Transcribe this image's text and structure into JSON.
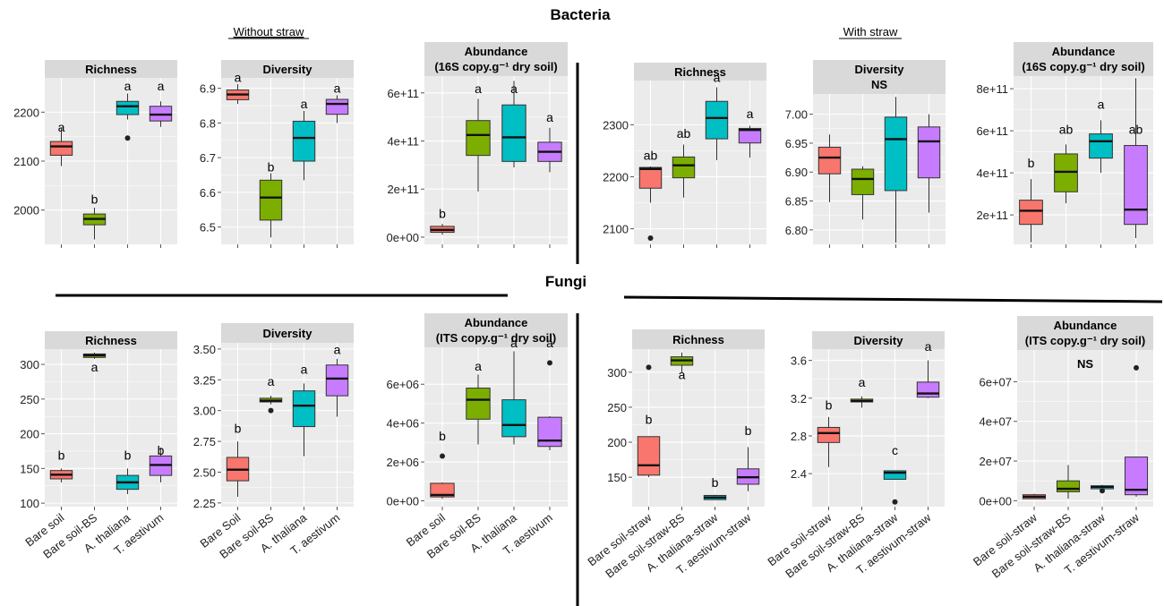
{
  "figure": {
    "title_bacteria": "Bacteria",
    "title_fungi": "Fungi",
    "label_without_straw": "Without straw",
    "label_with_straw": "With straw"
  },
  "colors": {
    "panel_bg": "#ebebeb",
    "strip_bg": "#d9d9d9",
    "grid": "#ffffff",
    "groups": [
      "#f8766d",
      "#7cae00",
      "#00bfc4",
      "#c77cff"
    ]
  },
  "chart_data": [
    {
      "type": "box",
      "id": "b1",
      "title": "Richness",
      "categories": [
        "Bare soil",
        "Bare soil-BS",
        "A. thaliana",
        "T. aestivum"
      ],
      "show_xlabels": false,
      "yticks": [
        2000,
        2100,
        2200
      ],
      "ytick_labels": [
        "2000",
        "2100",
        "2200"
      ],
      "ylim": [
        1930,
        2270
      ],
      "boxes": [
        {
          "min": 2090,
          "q1": 2112,
          "median": 2130,
          "q3": 2140,
          "max": 2168,
          "outliers": []
        },
        {
          "min": 1940,
          "q1": 1970,
          "median": 1982,
          "q3": 1992,
          "max": 2005,
          "outliers": []
        },
        {
          "min": 2185,
          "q1": 2195,
          "median": 2212,
          "q3": 2222,
          "max": 2238,
          "outliers": [
            2147
          ]
        },
        {
          "min": 2170,
          "q1": 2182,
          "median": 2195,
          "q3": 2212,
          "max": 2222,
          "outliers": []
        }
      ],
      "letters": [
        "a",
        "b",
        "a",
        "a"
      ],
      "letter_y": [
        2160,
        2013,
        2244,
        2244
      ]
    },
    {
      "type": "box",
      "id": "b2",
      "title": "Diversity",
      "categories": [
        "Bare soil",
        "Bare soil-BS",
        "A. thaliana",
        "T. aestivum"
      ],
      "show_xlabels": false,
      "yticks": [
        6.5,
        6.6,
        6.7,
        6.8,
        6.9
      ],
      "ytick_labels": [
        "6.5",
        "6.6",
        "6.7",
        "6.8",
        "6.9"
      ],
      "ylim": [
        6.45,
        6.93
      ],
      "boxes": [
        {
          "min": 6.855,
          "q1": 6.867,
          "median": 6.882,
          "q3": 6.895,
          "max": 6.912,
          "outliers": []
        },
        {
          "min": 6.47,
          "q1": 6.52,
          "median": 6.585,
          "q3": 6.635,
          "max": 6.655,
          "outliers": []
        },
        {
          "min": 6.635,
          "q1": 6.69,
          "median": 6.757,
          "q3": 6.805,
          "max": 6.835,
          "outliers": []
        },
        {
          "min": 6.8,
          "q1": 6.825,
          "median": 6.855,
          "q3": 6.868,
          "max": 6.88,
          "outliers": []
        }
      ],
      "letters": [
        "a",
        "b",
        "a",
        "a"
      ],
      "letter_y": [
        6.918,
        6.66,
        6.842,
        6.888
      ]
    },
    {
      "type": "box",
      "id": "b3",
      "title": "Abundance\n(16S copy.g⁻¹ dry soil)",
      "categories": [
        "Bare soil",
        "Bare soil-BS",
        "A. thaliana",
        "T. aestivum"
      ],
      "show_xlabels": false,
      "yticks": [
        0,
        200000000000.0,
        400000000000.0,
        600000000000.0
      ],
      "ytick_labels": [
        "0e+00",
        "2e+11",
        "4e+11",
        "6e+11"
      ],
      "ylim": [
        -30000000000.0,
        670000000000.0
      ],
      "boxes": [
        {
          "min": 10000000000.0,
          "q1": 20000000000.0,
          "median": 30000000000.0,
          "q3": 45000000000.0,
          "max": 55000000000.0,
          "outliers": []
        },
        {
          "min": 190000000000.0,
          "q1": 340000000000.0,
          "median": 425000000000.0,
          "q3": 485000000000.0,
          "max": 575000000000.0,
          "outliers": []
        },
        {
          "min": 290000000000.0,
          "q1": 315000000000.0,
          "median": 415000000000.0,
          "q3": 550000000000.0,
          "max": 650000000000.0,
          "outliers": []
        },
        {
          "min": 270000000000.0,
          "q1": 315000000000.0,
          "median": 355000000000.0,
          "q3": 395000000000.0,
          "max": 455000000000.0,
          "outliers": []
        }
      ],
      "letters": [
        "b",
        "a",
        "a",
        "a"
      ],
      "letter_y": [
        80000000000.0,
        600000000000.0,
        600000000000.0,
        480000000000.0
      ]
    },
    {
      "type": "box",
      "id": "b4",
      "title": "Richness",
      "categories": [
        "Bare soil-straw",
        "Bare soil-straw-BS",
        "A. thaliana-straw",
        "T. aestivum-straw"
      ],
      "show_xlabels": false,
      "yticks": [
        2100,
        2200,
        2300
      ],
      "ytick_labels": [
        "2100",
        "2200",
        "2300"
      ],
      "ylim": [
        2070,
        2385
      ],
      "boxes": [
        {
          "min": 2150,
          "q1": 2178,
          "median": 2215,
          "q3": 2218,
          "max": 2220,
          "outliers": [
            2082
          ]
        },
        {
          "min": 2160,
          "q1": 2198,
          "median": 2222,
          "q3": 2238,
          "max": 2262,
          "outliers": []
        },
        {
          "min": 2232,
          "q1": 2273,
          "median": 2313,
          "q3": 2345,
          "max": 2372,
          "outliers": []
        },
        {
          "min": 2237,
          "q1": 2265,
          "median": 2290,
          "q3": 2293,
          "max": 2298,
          "outliers": []
        }
      ],
      "letters": [
        "ab",
        "ab",
        "a",
        "a"
      ],
      "letter_y": [
        2233,
        2275,
        2382,
        2313
      ]
    },
    {
      "type": "box",
      "id": "b5",
      "title": "Diversity\nNS",
      "categories": [
        "Bare soil-straw",
        "Bare soil-straw-BS",
        "A. thaliana-straw",
        "T. aestivum-straw"
      ],
      "show_xlabels": false,
      "yticks": [
        6.8,
        6.85,
        6.9,
        6.95,
        7.0
      ],
      "ytick_labels": [
        "6.80",
        "6.85",
        "6.90",
        "6.95",
        "7.00"
      ],
      "ylim": [
        6.775,
        7.035
      ],
      "boxes": [
        {
          "min": 6.848,
          "q1": 6.897,
          "median": 6.925,
          "q3": 6.943,
          "max": 6.965,
          "outliers": []
        },
        {
          "min": 6.818,
          "q1": 6.861,
          "median": 6.888,
          "q3": 6.905,
          "max": 6.91,
          "outliers": []
        },
        {
          "min": 6.778,
          "q1": 6.868,
          "median": 6.957,
          "q3": 6.995,
          "max": 7.03,
          "outliers": []
        },
        {
          "min": 6.83,
          "q1": 6.89,
          "median": 6.953,
          "q3": 6.978,
          "max": 7.0,
          "outliers": []
        }
      ],
      "letters": [],
      "letter_y": []
    },
    {
      "type": "box",
      "id": "b6",
      "title": "Abundance\n(16S copy.g⁻¹ dry soil)",
      "categories": [
        "Bare soil-straw",
        "Bare soil-straw-BS",
        "A. thaliana-straw",
        "T. aestivum-straw"
      ],
      "show_xlabels": false,
      "yticks": [
        200000000000.0,
        400000000000.0,
        600000000000.0,
        800000000000.0
      ],
      "ytick_labels": [
        "2e+11",
        "4e+11",
        "6e+11",
        "8e+11"
      ],
      "ylim": [
        60000000000.0,
        860000000000.0
      ],
      "boxes": [
        {
          "min": 70000000000.0,
          "q1": 155000000000.0,
          "median": 220000000000.0,
          "q3": 270000000000.0,
          "max": 370000000000.0,
          "outliers": []
        },
        {
          "min": 255000000000.0,
          "q1": 310000000000.0,
          "median": 405000000000.0,
          "q3": 490000000000.0,
          "max": 535000000000.0,
          "outliers": []
        },
        {
          "min": 400000000000.0,
          "q1": 470000000000.0,
          "median": 550000000000.0,
          "q3": 585000000000.0,
          "max": 650000000000.0,
          "outliers": []
        },
        {
          "min": 90000000000.0,
          "q1": 155000000000.0,
          "median": 225000000000.0,
          "q3": 530000000000.0,
          "max": 850000000000.0,
          "outliers": []
        }
      ],
      "letters": [
        "b",
        "ab",
        "a",
        "ab"
      ],
      "letter_y": [
        425000000000.0,
        585000000000.0,
        705000000000.0,
        585000000000.0
      ]
    },
    {
      "type": "box",
      "id": "f1",
      "title": "Richness",
      "categories": [
        "Bare soil",
        "Bare soil-BS",
        "A. thaliana",
        "T. aestivum"
      ],
      "show_xlabels": true,
      "yticks": [
        100,
        150,
        200,
        250,
        300
      ],
      "ytick_labels": [
        "100",
        "150",
        "200",
        "250",
        "300"
      ],
      "ylim": [
        95,
        322
      ],
      "boxes": [
        {
          "min": 130,
          "q1": 135,
          "median": 141,
          "q3": 147,
          "max": 150,
          "outliers": []
        },
        {
          "min": 308,
          "q1": 310,
          "median": 313,
          "q3": 315,
          "max": 317,
          "outliers": []
        },
        {
          "min": 113,
          "q1": 120,
          "median": 130,
          "q3": 140,
          "max": 150,
          "outliers": []
        },
        {
          "min": 130,
          "q1": 140,
          "median": 155,
          "q3": 168,
          "max": 180,
          "outliers": []
        }
      ],
      "letters": [
        "b",
        "a",
        "b",
        "b"
      ],
      "letter_y": [
        163,
        290,
        163,
        170
      ]
    },
    {
      "type": "box",
      "id": "f2",
      "title": "Diversity",
      "categories": [
        "Bare Soil",
        "Bare soil-BS",
        "A. thaliana",
        "T. aestivum"
      ],
      "show_xlabels": true,
      "yticks": [
        2.25,
        2.5,
        2.75,
        3.0,
        3.25,
        3.5
      ],
      "ytick_labels": [
        "2.25",
        "2.50",
        "2.75",
        "3.00",
        "3.25",
        "3.50"
      ],
      "ylim": [
        2.22,
        3.55
      ],
      "boxes": [
        {
          "min": 2.3,
          "q1": 2.43,
          "median": 2.52,
          "q3": 2.62,
          "max": 2.75,
          "outliers": []
        },
        {
          "min": 3.05,
          "q1": 3.07,
          "median": 3.08,
          "q3": 3.1,
          "max": 3.12,
          "outliers": [
            3.0
          ]
        },
        {
          "min": 2.63,
          "q1": 2.87,
          "median": 3.04,
          "q3": 3.16,
          "max": 3.22,
          "outliers": []
        },
        {
          "min": 2.95,
          "q1": 3.12,
          "median": 3.26,
          "q3": 3.37,
          "max": 3.42,
          "outliers": []
        }
      ],
      "letters": [
        "b",
        "a",
        "a",
        "a"
      ],
      "letter_y": [
        2.82,
        3.2,
        3.3,
        3.46
      ]
    },
    {
      "type": "box",
      "id": "f3",
      "title": "Abundance\n(ITS copy.g⁻¹ dry soil)",
      "categories": [
        "Bare soil",
        "Bare soil-BS",
        "A. thaliana",
        "T. aestivum"
      ],
      "show_xlabels": true,
      "yticks": [
        0,
        2000000.0,
        4000000.0,
        6000000.0
      ],
      "ytick_labels": [
        "0e+00",
        "2e+06",
        "4e+06",
        "6e+06"
      ],
      "ylim": [
        -300000.0,
        7900000.0
      ],
      "boxes": [
        {
          "min": 100000.0,
          "q1": 200000.0,
          "median": 300000.0,
          "q3": 900000.0,
          "max": 950000.0,
          "outliers": [
            2300000.0
          ]
        },
        {
          "min": 2900000.0,
          "q1": 4200000.0,
          "median": 5200000.0,
          "q3": 5800000.0,
          "max": 6500000.0,
          "outliers": []
        },
        {
          "min": 2900000.0,
          "q1": 3300000.0,
          "median": 3900000.0,
          "q3": 5200000.0,
          "max": 7700000.0,
          "outliers": []
        },
        {
          "min": 2600000.0,
          "q1": 2800000.0,
          "median": 3100000.0,
          "q3": 4300000.0,
          "max": 4350000.0,
          "outliers": [
            7100000.0
          ]
        }
      ],
      "letters": [
        "b",
        "a",
        "a",
        "a"
      ],
      "letter_y": [
        3100000.0,
        6700000.0,
        7900000.0,
        7900000.0
      ]
    },
    {
      "type": "box",
      "id": "f4",
      "title": "Richness",
      "categories": [
        "Bare soil-straw",
        "Bare soil-straw-BS",
        "A. thaliana-straw",
        "T. aestivum-straw"
      ],
      "show_xlabels": true,
      "yticks": [
        150,
        200,
        250,
        300
      ],
      "ytick_labels": [
        "150",
        "200",
        "250",
        "300"
      ],
      "ylim": [
        108,
        333
      ],
      "boxes": [
        {
          "min": 150,
          "q1": 153,
          "median": 167,
          "q3": 208,
          "max": 208,
          "outliers": [
            307
          ]
        },
        {
          "min": 300,
          "q1": 310,
          "median": 317,
          "q3": 322,
          "max": 328,
          "outliers": []
        },
        {
          "min": 118,
          "q1": 118,
          "median": 121,
          "q3": 124,
          "max": 125,
          "outliers": []
        },
        {
          "min": 130,
          "q1": 140,
          "median": 150,
          "q3": 162,
          "max": 193,
          "outliers": []
        }
      ],
      "letters": [
        "b",
        "a",
        "b",
        "b"
      ],
      "letter_y": [
        226,
        290,
        136,
        210
      ]
    },
    {
      "type": "box",
      "id": "f5",
      "title": "Diversity",
      "categories": [
        "Bare soil-straw",
        "Bare soil-straw-BS",
        "A. thaliana-straw",
        "T. aestivum-straw"
      ],
      "show_xlabels": true,
      "yticks": [
        2.4,
        2.8,
        3.2,
        3.6
      ],
      "ytick_labels": [
        "2.4",
        "2.8",
        "3.2",
        "3.6"
      ],
      "ylim": [
        2.05,
        3.72
      ],
      "boxes": [
        {
          "min": 2.47,
          "q1": 2.73,
          "median": 2.83,
          "q3": 2.89,
          "max": 3.0,
          "outliers": []
        },
        {
          "min": 3.1,
          "q1": 3.16,
          "median": 3.17,
          "q3": 3.19,
          "max": 3.22,
          "outliers": []
        },
        {
          "min": 2.34,
          "q1": 2.34,
          "median": 2.41,
          "q3": 2.43,
          "max": 2.43,
          "outliers": [
            2.1
          ]
        },
        {
          "min": 3.2,
          "q1": 3.21,
          "median": 3.25,
          "q3": 3.37,
          "max": 3.6,
          "outliers": []
        }
      ],
      "letters": [
        "b",
        "a",
        "c",
        "a"
      ],
      "letter_y": [
        3.08,
        3.32,
        2.6,
        3.7
      ]
    },
    {
      "type": "box",
      "id": "f6",
      "title": "Abundance\n(ITS copy.g⁻¹ dry soil)",
      "categories": [
        "Bare soil-straw",
        "Bare soil-straw-BS",
        "A. thaliana-straw",
        "T. aestivum-straw"
      ],
      "show_xlabels": true,
      "yticks": [
        0,
        20000000.0,
        40000000.0,
        60000000.0
      ],
      "ytick_labels": [
        "0e+00",
        "2e+07",
        "4e+07",
        "6e+07"
      ],
      "ylim": [
        -3000000.0,
        76000000.0
      ],
      "boxes": [
        {
          "min": 1000000.0,
          "q1": 1000000.0,
          "median": 2000000.0,
          "q3": 3000000.0,
          "max": 3500000.0,
          "outliers": []
        },
        {
          "min": 1000000.0,
          "q1": 4500000.0,
          "median": 6000000.0,
          "q3": 10000000.0,
          "max": 18000000.0,
          "outliers": []
        },
        {
          "min": 6000000.0,
          "q1": 6000000.0,
          "median": 7000000.0,
          "q3": 7500000.0,
          "max": 8000000.0,
          "outliers": [
            5000000.0
          ]
        },
        {
          "min": 2000000.0,
          "q1": 3000000.0,
          "median": 5500000.0,
          "q3": 22000000.0,
          "max": 22000000.0,
          "outliers": [
            67000000.0
          ]
        }
      ],
      "letters": [],
      "letter_y": [],
      "annotation": "NS"
    }
  ]
}
